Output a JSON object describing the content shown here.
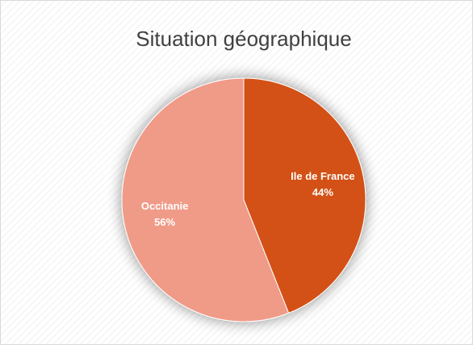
{
  "chart_data": {
    "type": "pie",
    "title": "Situation géographique",
    "categories": [
      "Ile de France",
      "Occitanie"
    ],
    "values": [
      44,
      56
    ],
    "value_labels": [
      "44%",
      "56%"
    ],
    "colors": [
      "#d35118",
      "#f09a88"
    ]
  }
}
